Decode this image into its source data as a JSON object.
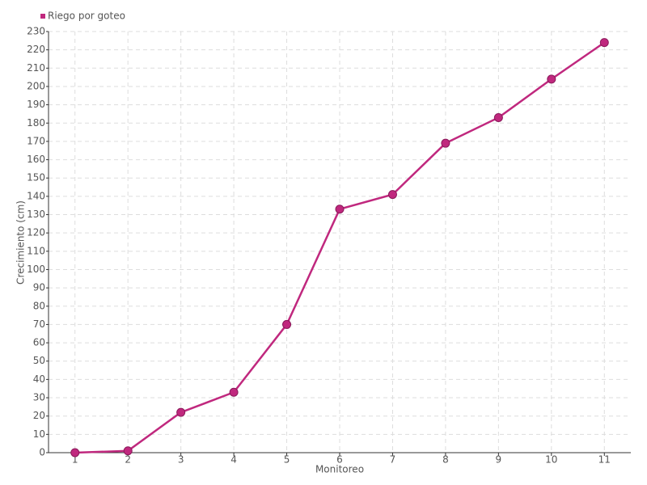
{
  "chart_data": {
    "type": "line",
    "categories": [
      "1",
      "2",
      "3",
      "4",
      "5",
      "6",
      "7",
      "8",
      "9",
      "10",
      "11"
    ],
    "series": [
      {
        "name": "Riego por goteo",
        "color": "#c0287e",
        "values": [
          0,
          1,
          22,
          33,
          70,
          133,
          141,
          169,
          183,
          204,
          224
        ]
      }
    ],
    "x_label": "Monitoreo",
    "y_label": "Crecimiento (cm)",
    "ylim": [
      0,
      230
    ],
    "yticks": [
      0,
      10,
      20,
      30,
      40,
      50,
      60,
      70,
      80,
      90,
      100,
      110,
      120,
      130,
      140,
      150,
      160,
      170,
      180,
      190,
      200,
      210,
      220,
      230
    ],
    "grid": true,
    "legend": "top-left"
  }
}
